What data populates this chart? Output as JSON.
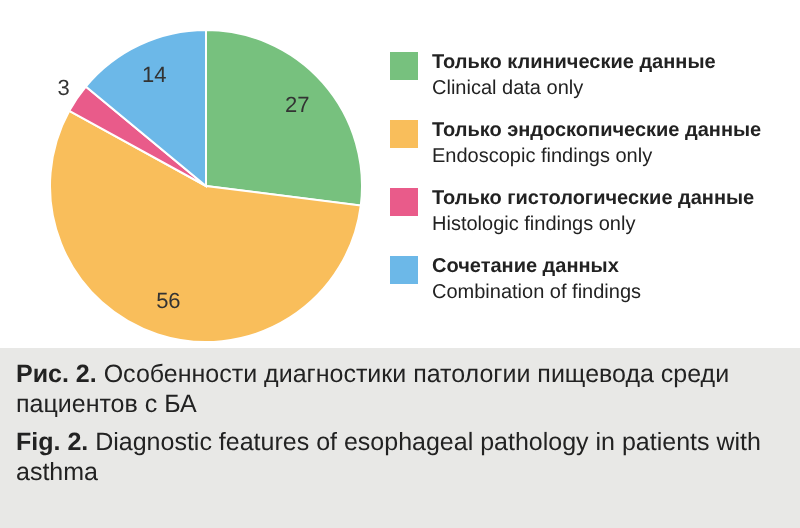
{
  "chart_data": {
    "type": "pie",
    "categories": [
      "Только клинические данные\nClinical data only",
      "Только эндоскопические данные\nEndoscopic findings only",
      "Только гистологические данные\nHistologic findings only",
      "Сочетание данных\nCombination of findings"
    ],
    "values": [
      27,
      56,
      3,
      14
    ],
    "colors": [
      "#77c17e",
      "#f9be5b",
      "#e95b8a",
      "#6cb8e8"
    ],
    "data_labels": true,
    "legend": "right",
    "annotations": [
      "Рис. 2. Особенности диагностики патологии пищевода среди пациентов с БА",
      "Fig. 2. Diagnostic features of esophageal pathology in patients with asthma"
    ]
  }
}
